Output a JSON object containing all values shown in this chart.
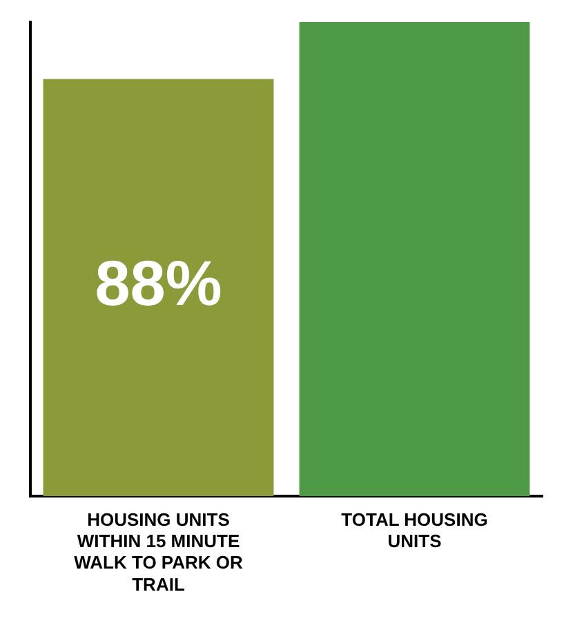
{
  "chart_data": {
    "type": "bar",
    "tick_labels": "x",
    "categories": [
      "HOUSING UNITS WITHIN 15 MINUTE WALK TO PARK OR TRAIL",
      "TOTAL HOUSING UNITS"
    ],
    "values": [
      88,
      100
    ],
    "colors": [
      "#8c9a3a",
      "#4e9a47"
    ],
    "value_labels": [
      "88%",
      null
    ],
    "grid": false,
    "legend": false
  }
}
